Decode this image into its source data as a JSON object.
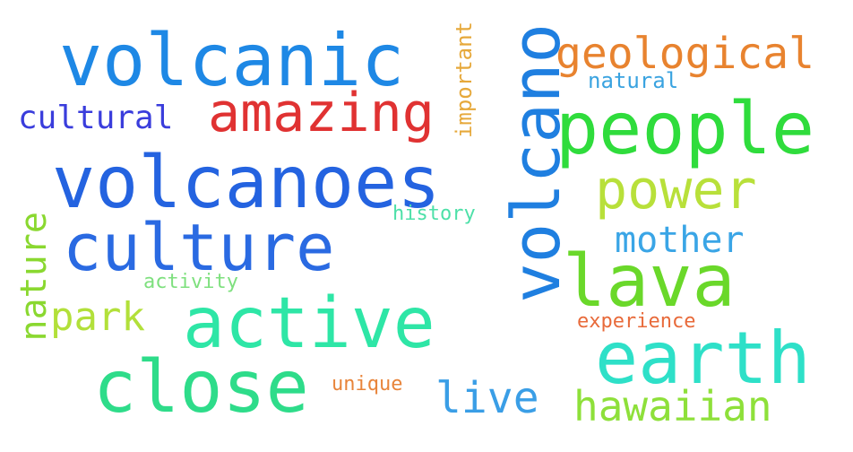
{
  "words": [
    {
      "key": "volcanic",
      "text": "volcanic",
      "color": "#1e88e5"
    },
    {
      "key": "volcano",
      "text": "volcano",
      "color": "#1f7fe0"
    },
    {
      "key": "geological",
      "text": "geological",
      "color": "#e8832f"
    },
    {
      "key": "natural",
      "text": "natural",
      "color": "#3aa3e0"
    },
    {
      "key": "important",
      "text": "important",
      "color": "#e6a83a"
    },
    {
      "key": "cultural",
      "text": "cultural",
      "color": "#3a3ddc"
    },
    {
      "key": "amazing",
      "text": "amazing",
      "color": "#e03232"
    },
    {
      "key": "people",
      "text": "people",
      "color": "#2fdc3c"
    },
    {
      "key": "volcanoes",
      "text": "volcanoes",
      "color": "#2463e0"
    },
    {
      "key": "power",
      "text": "power",
      "color": "#b8e03a"
    },
    {
      "key": "history",
      "text": "history",
      "color": "#4de0a8"
    },
    {
      "key": "culture",
      "text": "culture",
      "color": "#2a6ae2"
    },
    {
      "key": "nature",
      "text": "nature",
      "color": "#8ad830"
    },
    {
      "key": "mother",
      "text": "mother",
      "color": "#3aa5e6"
    },
    {
      "key": "lava",
      "text": "lava",
      "color": "#6ad82a"
    },
    {
      "key": "activity",
      "text": "activity",
      "color": "#7ee07e"
    },
    {
      "key": "park",
      "text": "park",
      "color": "#b2e03a"
    },
    {
      "key": "active",
      "text": "active",
      "color": "#2ee6a6"
    },
    {
      "key": "experience",
      "text": "experience",
      "color": "#e86a3a"
    },
    {
      "key": "earth",
      "text": "earth",
      "color": "#2ee0c8"
    },
    {
      "key": "close",
      "text": "close",
      "color": "#2edc8a"
    },
    {
      "key": "unique",
      "text": "unique",
      "color": "#e8843a"
    },
    {
      "key": "live",
      "text": "live",
      "color": "#3a9ee6"
    },
    {
      "key": "hawaiian",
      "text": "hawaiian",
      "color": "#8ee03a"
    }
  ]
}
